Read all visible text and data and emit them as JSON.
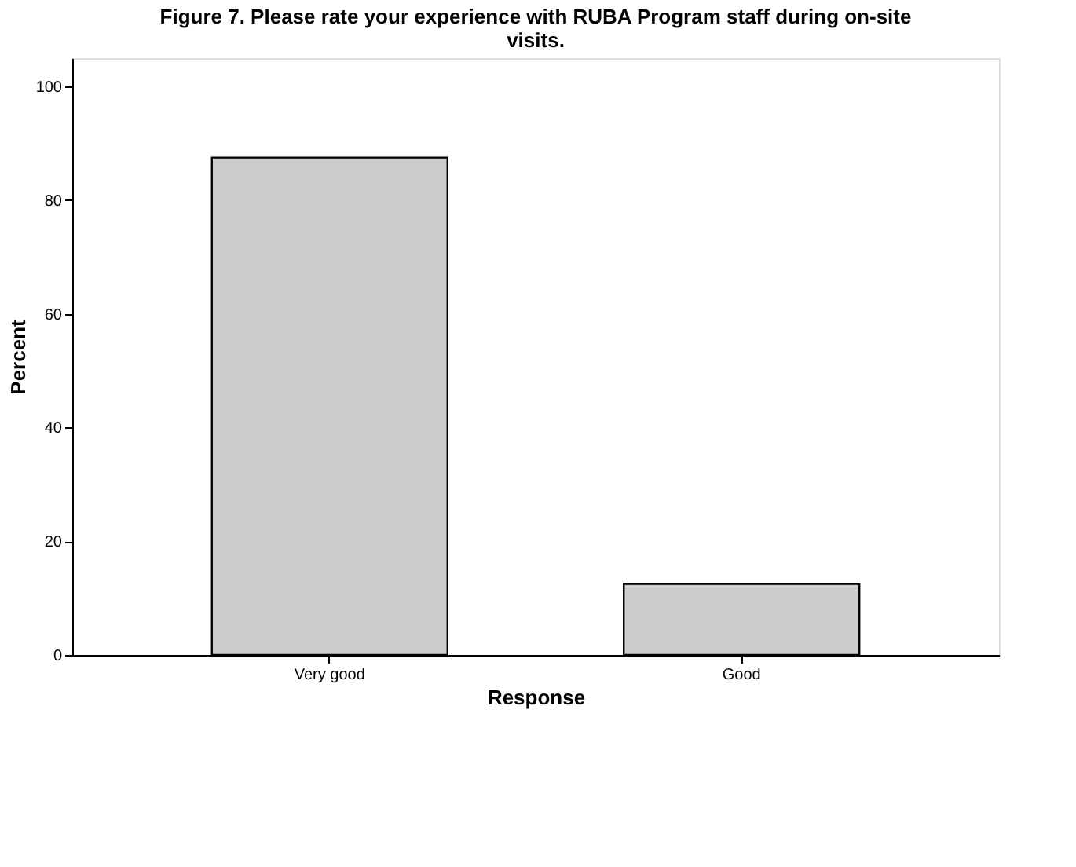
{
  "chart_data": {
    "type": "bar",
    "title": [
      "Figure 7.  Please rate your experience with RUBA Program staff during on-site",
      "visits."
    ],
    "categories": [
      "Very good",
      "Good"
    ],
    "values": [
      87.5,
      12.5
    ],
    "color": "#cccccc",
    "xlabel": "Response",
    "ylabel": "Percent",
    "ylim": [
      0,
      105
    ],
    "yticks": [
      0,
      20,
      40,
      60,
      80,
      100
    ],
    "grid": false
  }
}
